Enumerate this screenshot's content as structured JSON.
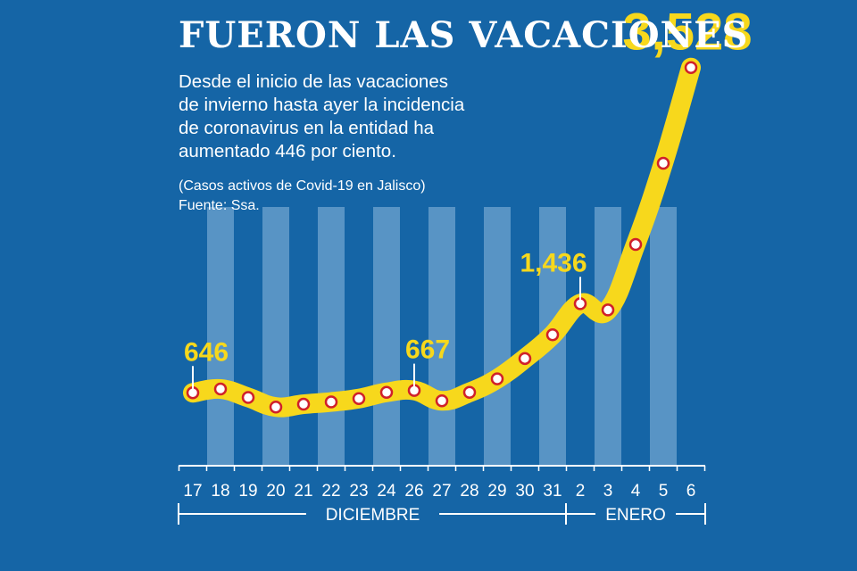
{
  "title": "FUERON LAS VACACIONES",
  "description_lines": [
    "Desde el inicio de las vacaciones",
    "de invierno hasta ayer la incidencia",
    "de coronavirus en la entidad ha",
    "aumentado 446 por ciento."
  ],
  "subtitle": "(Casos activos de Covid-19 en Jalisco)",
  "source": "Fuente: Ssa.",
  "colors": {
    "background": "#1565a6",
    "band": "#6fa4cf",
    "line": "#f7d81c",
    "marker_ring": "#d0202a",
    "marker_fill": "#ffffff",
    "label": "#f7d81c",
    "axis": "#ffffff"
  },
  "chart_data": {
    "type": "line",
    "categories": [
      "17",
      "18",
      "19",
      "20",
      "21",
      "22",
      "23",
      "24",
      "26",
      "27",
      "28",
      "29",
      "30",
      "31",
      "2",
      "3",
      "4",
      "5",
      "6"
    ],
    "values": [
      646,
      680,
      605,
      520,
      545,
      565,
      595,
      650,
      667,
      575,
      650,
      770,
      950,
      1160,
      1436,
      1380,
      1960,
      2680,
      3528
    ],
    "ylim": [
      0,
      4000
    ],
    "annotations": [
      {
        "index": 0,
        "label": "646"
      },
      {
        "index": 8,
        "label": "667"
      },
      {
        "index": 14,
        "label": "1,436"
      },
      {
        "index": 18,
        "label": "3,528"
      }
    ],
    "groups": [
      {
        "label": "DICIEMBRE",
        "from": 0,
        "to": 13
      },
      {
        "label": "ENERO",
        "from": 14,
        "to": 18
      }
    ],
    "grid": false
  }
}
